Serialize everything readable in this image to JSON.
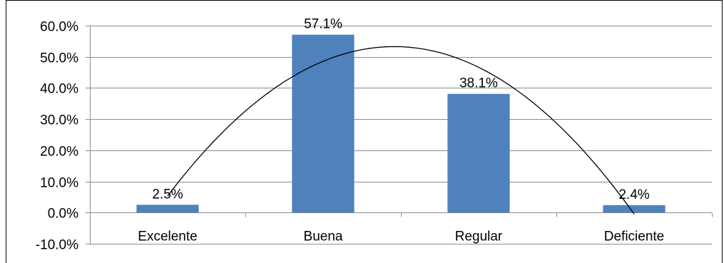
{
  "chart_data": {
    "type": "bar",
    "categories": [
      "Excelente",
      "Buena",
      "Regular",
      "Deficiente"
    ],
    "values": [
      2.5,
      57.1,
      38.1,
      2.4
    ],
    "data_labels": [
      "2.5%",
      "57.1%",
      "38.1%",
      "2.4%"
    ],
    "ylim": [
      -10,
      60
    ],
    "yticks": [
      -10,
      0,
      10,
      20,
      30,
      40,
      50,
      60
    ],
    "ytick_labels": [
      "-10.0%",
      "0.0%",
      "10.0%",
      "20.0%",
      "30.0%",
      "40.0%",
      "50.0%",
      "60.0%"
    ],
    "grid": true,
    "legend": "none",
    "trendline": "polynomial",
    "bar_color": "#4f81bd",
    "title": "",
    "xlabel": "",
    "ylabel": ""
  }
}
